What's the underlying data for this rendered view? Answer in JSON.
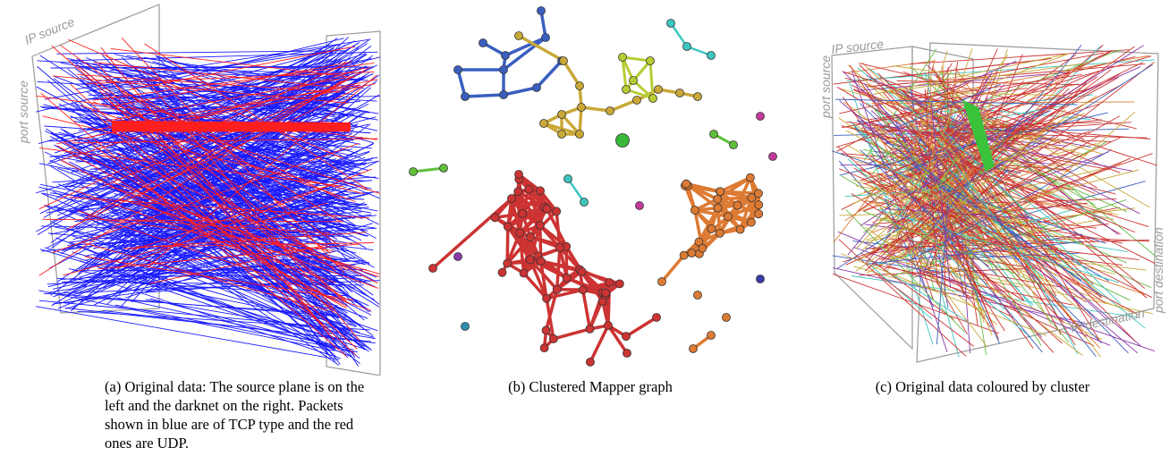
{
  "panel_a": {
    "axis_labels": {
      "ip_source": "IP source",
      "port_source": "port source"
    },
    "caption": "(a) Original data: The source plane is on the left and the darknet on the right. Packets shown in blue are of TCP type and the red ones are UDP.",
    "colors": {
      "tcp": "#1a1aff",
      "udp": "#ff1f1f"
    }
  },
  "panel_b": {
    "caption": "(b) Clustered Mapper graph",
    "colors": {
      "blue": "#3a5fc0",
      "gold": "#c9a838",
      "lime": "#b8cc33",
      "teal": "#3cc6c0",
      "green": "#5fbf3a",
      "magenta": "#c33a9a",
      "red": "#cc3333",
      "orange": "#dd7a33",
      "purple": "#8a3aa8"
    }
  },
  "panel_c": {
    "axis_labels": {
      "ip_source": "IP source",
      "port_source": "port source",
      "port_destination": "port destination",
      "ip_destination": "IP destination"
    },
    "caption": "(c) Original data coloured by cluster"
  }
}
